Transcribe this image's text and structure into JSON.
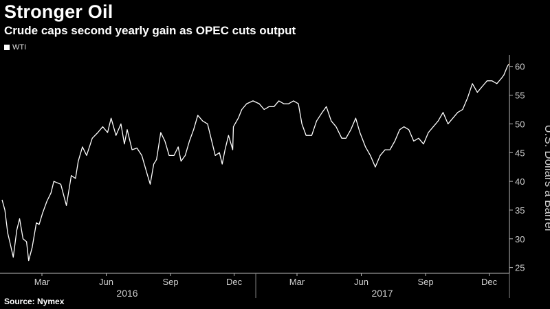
{
  "title": "Stronger Oil",
  "subtitle": "Crude caps second yearly gain as OPEC cuts output",
  "source": "Source: Nymex",
  "colors": {
    "line": "#ffffff",
    "end_marker": "#d9822b",
    "axis": "#bbbbbb",
    "background": "#000000"
  },
  "chart_data": {
    "type": "line",
    "title": "Stronger Oil",
    "subtitle": "Crude caps second yearly gain as OPEC cuts output",
    "ylabel": "U.S. Dollars a Barrel",
    "y_axis_position": "right",
    "ylim": [
      24,
      62
    ],
    "yticks": [
      25,
      30,
      35,
      40,
      45,
      50,
      55,
      60
    ],
    "xlim": [
      "2016-01-01",
      "2017-12-29"
    ],
    "xticks": [
      {
        "date": "2016-03-01",
        "label": "Mar"
      },
      {
        "date": "2016-06-01",
        "label": "Jun"
      },
      {
        "date": "2016-09-01",
        "label": "Sep"
      },
      {
        "date": "2016-12-01",
        "label": "Dec"
      },
      {
        "date": "2017-03-01",
        "label": "Mar"
      },
      {
        "date": "2017-06-01",
        "label": "Jun"
      },
      {
        "date": "2017-09-01",
        "label": "Sep"
      },
      {
        "date": "2017-12-01",
        "label": "Dec"
      }
    ],
    "years": [
      {
        "label": "2016",
        "center": "2016-07-01"
      },
      {
        "label": "2017",
        "center": "2017-07-01"
      }
    ],
    "year_boundaries": [
      "2017-01-01"
    ],
    "legend": {
      "position": "top-left",
      "entries": [
        "WTI"
      ]
    },
    "grid": false,
    "series": [
      {
        "name": "WTI",
        "x": [
          "2016-01-04",
          "2016-01-08",
          "2016-01-12",
          "2016-01-15",
          "2016-01-20",
          "2016-01-25",
          "2016-01-29",
          "2016-02-03",
          "2016-02-08",
          "2016-02-11",
          "2016-02-16",
          "2016-02-22",
          "2016-02-26",
          "2016-03-02",
          "2016-03-08",
          "2016-03-14",
          "2016-03-18",
          "2016-03-22",
          "2016-03-28",
          "2016-04-05",
          "2016-04-12",
          "2016-04-18",
          "2016-04-22",
          "2016-04-28",
          "2016-05-04",
          "2016-05-12",
          "2016-05-20",
          "2016-05-27",
          "2016-06-03",
          "2016-06-08",
          "2016-06-15",
          "2016-06-22",
          "2016-06-27",
          "2016-07-01",
          "2016-07-08",
          "2016-07-15",
          "2016-07-22",
          "2016-07-29",
          "2016-08-03",
          "2016-08-08",
          "2016-08-12",
          "2016-08-18",
          "2016-08-24",
          "2016-08-30",
          "2016-09-06",
          "2016-09-12",
          "2016-09-16",
          "2016-09-22",
          "2016-09-28",
          "2016-10-04",
          "2016-10-10",
          "2016-10-17",
          "2016-10-24",
          "2016-10-31",
          "2016-11-04",
          "2016-11-10",
          "2016-11-14",
          "2016-11-18",
          "2016-11-23",
          "2016-11-29",
          "2016-11-30",
          "2016-12-07",
          "2016-12-12",
          "2016-12-19",
          "2016-12-28",
          "2017-01-06",
          "2017-01-13",
          "2017-01-20",
          "2017-01-27",
          "2017-02-03",
          "2017-02-10",
          "2017-02-17",
          "2017-02-24",
          "2017-03-03",
          "2017-03-08",
          "2017-03-14",
          "2017-03-22",
          "2017-03-29",
          "2017-04-06",
          "2017-04-12",
          "2017-04-19",
          "2017-04-26",
          "2017-05-04",
          "2017-05-10",
          "2017-05-17",
          "2017-05-24",
          "2017-05-30",
          "2017-06-07",
          "2017-06-14",
          "2017-06-21",
          "2017-06-28",
          "2017-07-05",
          "2017-07-12",
          "2017-07-19",
          "2017-07-26",
          "2017-08-01",
          "2017-08-08",
          "2017-08-15",
          "2017-08-22",
          "2017-08-29",
          "2017-09-05",
          "2017-09-12",
          "2017-09-19",
          "2017-09-26",
          "2017-10-03",
          "2017-10-10",
          "2017-10-17",
          "2017-10-24",
          "2017-10-31",
          "2017-11-07",
          "2017-11-14",
          "2017-11-21",
          "2017-11-28",
          "2017-12-05",
          "2017-12-12",
          "2017-12-19",
          "2017-12-22",
          "2017-12-27",
          "2017-12-29"
        ],
        "values": [
          36.8,
          35.0,
          31.0,
          29.5,
          26.8,
          31.5,
          33.5,
          30.0,
          29.5,
          26.2,
          28.5,
          32.8,
          32.5,
          34.5,
          36.5,
          38.0,
          40.0,
          39.8,
          39.5,
          35.8,
          41.0,
          40.5,
          43.5,
          46.0,
          44.5,
          47.5,
          48.5,
          49.5,
          48.5,
          51.0,
          48.0,
          50.0,
          46.5,
          49.0,
          45.5,
          45.8,
          44.5,
          41.5,
          39.5,
          43.0,
          43.8,
          48.5,
          47.0,
          44.5,
          44.5,
          46.0,
          43.5,
          44.5,
          47.0,
          49.0,
          51.5,
          50.5,
          50.0,
          46.5,
          44.5,
          45.0,
          43.0,
          45.5,
          48.0,
          45.5,
          49.5,
          51.0,
          52.5,
          53.5,
          54.0,
          53.5,
          52.5,
          53.0,
          53.0,
          54.0,
          53.5,
          53.5,
          54.0,
          53.5,
          50.0,
          48.0,
          48.0,
          50.5,
          52.0,
          53.0,
          50.5,
          49.5,
          47.5,
          47.5,
          49.0,
          51.0,
          48.5,
          46.0,
          44.5,
          42.5,
          44.5,
          45.5,
          45.5,
          47.0,
          49.0,
          49.5,
          49.0,
          47.0,
          47.5,
          46.5,
          48.5,
          49.5,
          50.5,
          52.0,
          50.0,
          51.0,
          52.0,
          52.5,
          54.5,
          57.0,
          55.5,
          56.5,
          57.5,
          57.5,
          57.0,
          58.0,
          58.5,
          60.0,
          60.4
        ]
      }
    ]
  }
}
